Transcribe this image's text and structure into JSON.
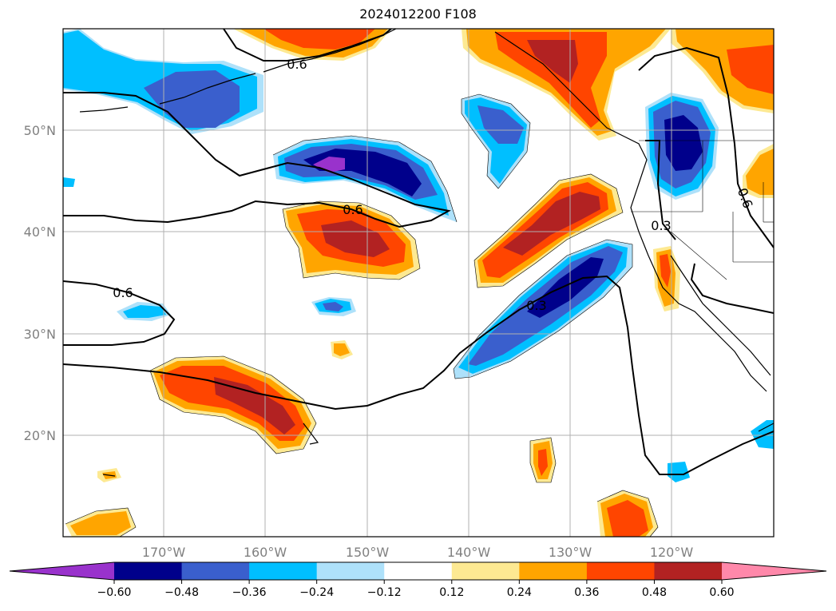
{
  "title": "2024012200 F108",
  "map": {
    "lat_labels": [
      "50°N",
      "40°N",
      "30°N",
      "20°N"
    ],
    "lon_labels": [
      "170°W",
      "160°W",
      "150°W",
      "140°W",
      "130°W",
      "120°W"
    ],
    "contour_labels": [
      "0.6",
      "0.6",
      "0.6",
      "0.3",
      "0.3",
      "0.6"
    ],
    "colors": {
      "purple": "#9932cc",
      "navy": "#00008b",
      "royal": "#3a5fcd",
      "sky": "#00bfff",
      "lightsky": "#aee1fa",
      "white": "#ffffff",
      "yellow": "#fde992",
      "orange": "#ffa500",
      "redorange": "#ff4500",
      "firebrick": "#b22222",
      "pink": "#ff88aa"
    }
  },
  "colorbar": {
    "ticks": [
      "−0.60",
      "−0.48",
      "−0.36",
      "−0.24",
      "−0.12",
      "0.12",
      "0.24",
      "0.36",
      "0.48",
      "0.60"
    ],
    "colors": [
      "#9932cc",
      "#00008b",
      "#3a5fcd",
      "#00bfff",
      "#aee1fa",
      "#ffffff",
      "#fde992",
      "#ffa500",
      "#ff4500",
      "#b22222",
      "#ff88aa"
    ]
  }
}
